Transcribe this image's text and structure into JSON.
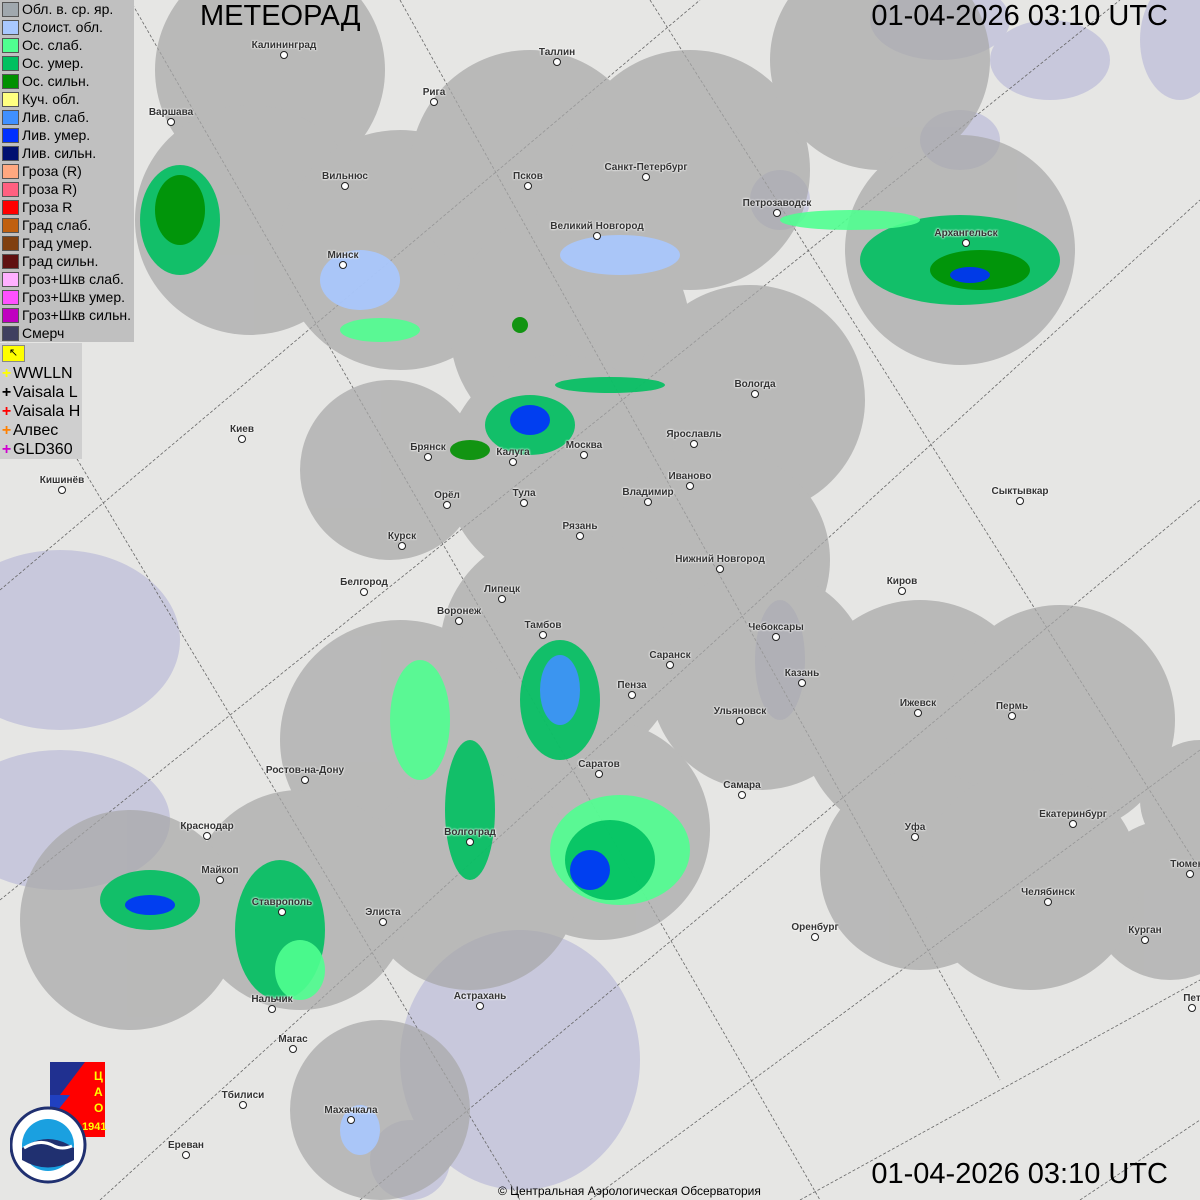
{
  "header": {
    "title": "МЕТЕОРАД",
    "timestamp": "01-04-2026  03:10 UTC"
  },
  "footer": {
    "timestamp": "01-04-2026  03:10 UTC",
    "copyright": "© Центральная Аэрологическая Обсерватория"
  },
  "legend": [
    {
      "label": "Обл. в. ср. яр.",
      "color": "#a0a8ae"
    },
    {
      "label": "Слоист. обл.",
      "color": "#a8c8ff"
    },
    {
      "label": "Ос. слаб.",
      "color": "#50ff90"
    },
    {
      "label": "Ос. умер.",
      "color": "#00c060"
    },
    {
      "label": "Ос. сильн.",
      "color": "#009000"
    },
    {
      "label": "Куч. обл.",
      "color": "#ffff80"
    },
    {
      "label": "Лив. слаб.",
      "color": "#4090ff"
    },
    {
      "label": "Лив. умер.",
      "color": "#0030ff"
    },
    {
      "label": "Лив. сильн.",
      "color": "#001070"
    },
    {
      "label": "Гроза (R)",
      "color": "#ffa880"
    },
    {
      "label": "Гроза R)",
      "color": "#ff6080"
    },
    {
      "label": "Гроза R",
      "color": "#ff0000"
    },
    {
      "label": "Град слаб.",
      "color": "#c06010"
    },
    {
      "label": "Град умер.",
      "color": "#804010"
    },
    {
      "label": "Град сильн.",
      "color": "#601010"
    },
    {
      "label": "Гроз+Шкв слаб.",
      "color": "#ffb0ff"
    },
    {
      "label": "Гроз+Шкв умер.",
      "color": "#ff50ff"
    },
    {
      "label": "Гроз+Шкв сильн.",
      "color": "#c000c0"
    },
    {
      "label": "Смерч",
      "color": "#404060"
    }
  ],
  "lightning_legend": [
    {
      "label": "WWLLN",
      "color": "#ffff00"
    },
    {
      "label": "Vaisala L",
      "color": "#000000"
    },
    {
      "label": "Vaisala H",
      "color": "#ff0000"
    },
    {
      "label": "Алвес",
      "color": "#ff8000"
    },
    {
      "label": "GLD360",
      "color": "#d000d0"
    }
  ],
  "lightning_flag_icon": "arrow-flag-icon",
  "logos": {
    "cao": "ЦАО 1941",
    "roshydromet": "РОСГИДРОМЕТ ROSHYDROMET"
  },
  "cities": [
    "Калининград",
    "Таллин",
    "Рига",
    "Варшава",
    "Вильнюс",
    "Псков",
    "Санкт-Петербург",
    "Петрозаводск",
    "Архангельск",
    "Великий Новгород",
    "Минск",
    "Вологда",
    "Ярославль",
    "Киев",
    "Брянск",
    "Калуга",
    "Москва",
    "Иваново",
    "Кишинёв",
    "Орёл",
    "Тула",
    "Владимир",
    "Сыктывкар",
    "Рязань",
    "Курск",
    "Нижний Новгород",
    "Белгород",
    "Липецк",
    "Киров",
    "Воронеж",
    "Тамбов",
    "Чебоксары",
    "Саранск",
    "Казань",
    "Пенза",
    "Ульяновск",
    "Ижевск",
    "Пермь",
    "Саратов",
    "Ростов-на-Дону",
    "Самара",
    "Екатеринбург",
    "Уфа",
    "Краснодар",
    "Волгоград",
    "Майкоп",
    "Тюмень",
    "Челябинск",
    "Ставрополь",
    "Элиста",
    "Оренбург",
    "Курган",
    "Астрахань",
    "Нальчик",
    "Пет",
    "Магас",
    "Тбилиси",
    "Махачкала",
    "Ереван"
  ],
  "colors": {
    "background": "#e6e6e4",
    "radar_coverage": "#a8a8a8",
    "water": "#c8c8dc"
  }
}
